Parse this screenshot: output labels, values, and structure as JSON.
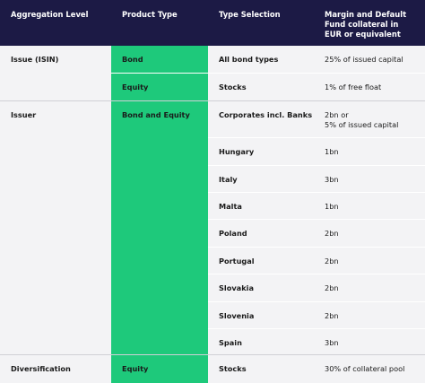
{
  "headers": {
    "aggregation_level": "Aggregation Level",
    "product_type": "Product Type",
    "type_selection": "Type Selection",
    "margin": "Margin and Default Fund collateral in EUR or equivalent"
  },
  "rows": [
    {
      "aggregation": "Issue (ISIN)",
      "product": "Bond",
      "type": "All bond types",
      "margin": "25% of issued capital"
    },
    {
      "aggregation": "",
      "product": "Equity",
      "type": "Stocks",
      "margin": "1% of free float"
    },
    {
      "aggregation": "Issuer",
      "product": "Bond and Equity",
      "type": "Corporates incl. Banks",
      "margin": "2bn or\n5% of issued capital"
    },
    {
      "aggregation": "",
      "product": "",
      "type": "Hungary",
      "margin": "1bn"
    },
    {
      "aggregation": "",
      "product": "",
      "type": "Italy",
      "margin": "3bn"
    },
    {
      "aggregation": "",
      "product": "",
      "type": "Malta",
      "margin": "1bn"
    },
    {
      "aggregation": "",
      "product": "",
      "type": "Poland",
      "margin": "2bn"
    },
    {
      "aggregation": "",
      "product": "",
      "type": "Portugal",
      "margin": "2bn"
    },
    {
      "aggregation": "",
      "product": "",
      "type": "Slovakia",
      "margin": "2bn"
    },
    {
      "aggregation": "",
      "product": "",
      "type": "Slovenia",
      "margin": "2bn"
    },
    {
      "aggregation": "",
      "product": "",
      "type": "Spain",
      "margin": "3bn"
    },
    {
      "aggregation": "Diversification",
      "product": "Equity",
      "type": "Stocks",
      "margin": "30% of collateral pool"
    }
  ],
  "colors": {
    "header_bg": "#1c1a45",
    "product_green": "#1ec97b",
    "cell_bg": "#f3f3f5"
  }
}
